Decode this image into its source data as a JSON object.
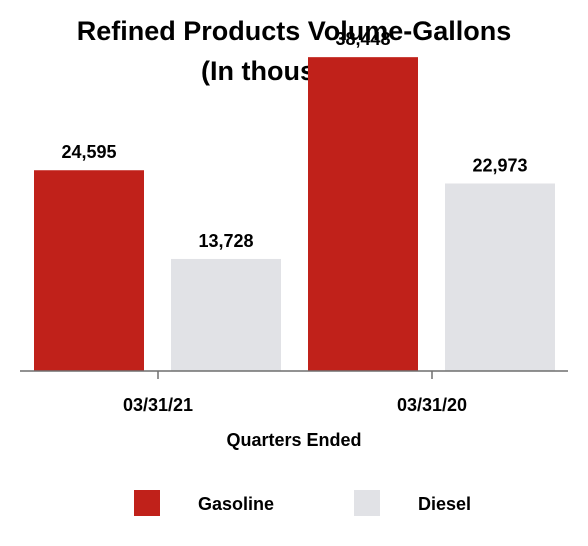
{
  "chart_data": {
    "type": "bar",
    "title": [
      "Refined Products Volume-Gallons",
      "(In thousands)"
    ],
    "xlabel": "Quarters Ended",
    "ylabel": "",
    "categories": [
      "03/31/21",
      "03/31/20"
    ],
    "series": [
      {
        "name": "Gasoline",
        "color": "#C0211A",
        "values": [
          24595,
          38448
        ],
        "labels": [
          "24,595",
          "38,448"
        ]
      },
      {
        "name": "Diesel",
        "color": "#E1E2E6",
        "values": [
          13728,
          22973
        ],
        "labels": [
          "13,728",
          "22,973"
        ]
      }
    ],
    "ylim": [
      0,
      43000
    ],
    "grid": false,
    "legend": "bottom"
  }
}
